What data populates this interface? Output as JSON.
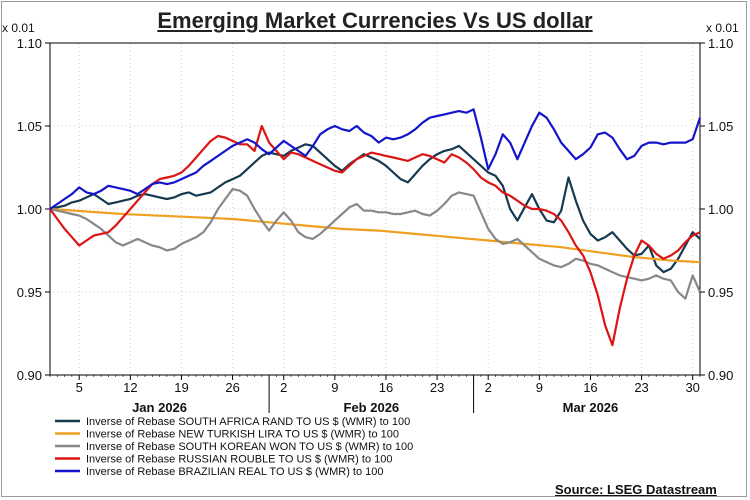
{
  "chart_data": {
    "type": "line",
    "title": "Emerging Market Currencies Vs US dollar",
    "y_scale_label_left": "x 0.01",
    "y_scale_label_right": "x 0.01",
    "ylim": [
      0.9,
      1.1
    ],
    "yticks": [
      "1.10",
      "1.05",
      "1.00",
      "0.95",
      "0.90"
    ],
    "xlim": [
      0,
      89
    ],
    "x_day_ticks": [
      {
        "label": "5",
        "x": 4
      },
      {
        "label": "12",
        "x": 11
      },
      {
        "label": "19",
        "x": 18
      },
      {
        "label": "26",
        "x": 25
      },
      {
        "label": "2",
        "x": 32
      },
      {
        "label": "9",
        "x": 39
      },
      {
        "label": "16",
        "x": 46
      },
      {
        "label": "23",
        "x": 53
      },
      {
        "label": "2",
        "x": 60
      },
      {
        "label": "9",
        "x": 67
      },
      {
        "label": "16",
        "x": 74
      },
      {
        "label": "23",
        "x": 81
      },
      {
        "label": "30",
        "x": 88
      }
    ],
    "x_month_labels": [
      {
        "label": "Jan 2026",
        "x": 15
      },
      {
        "label": "Feb 2026",
        "x": 44
      },
      {
        "label": "Mar 2026",
        "x": 74
      }
    ],
    "x_month_dividers": [
      30,
      58
    ],
    "x_note": "x values are days since 1 Jan 2026 (data begins 1 Jan = 0)",
    "series": [
      {
        "name": "Inverse of Rebase SOUTH AFRICA RAND TO US $ (WMR) to 100",
        "color": "#15394f",
        "x": [
          0,
          1,
          2,
          3,
          4,
          5,
          6,
          7,
          8,
          9,
          10,
          11,
          12,
          13,
          14,
          15,
          16,
          17,
          18,
          19,
          20,
          21,
          22,
          23,
          24,
          25,
          26,
          27,
          28,
          29,
          30,
          31,
          32,
          33,
          34,
          35,
          36,
          37,
          38,
          39,
          40,
          41,
          42,
          43,
          44,
          45,
          46,
          47,
          48,
          49,
          50,
          51,
          52,
          53,
          54,
          55,
          56,
          57,
          58,
          59,
          60,
          61,
          62,
          63,
          64,
          65,
          66,
          67,
          68,
          69,
          70,
          71,
          72,
          73,
          74,
          75,
          76,
          77,
          78,
          79,
          80,
          81,
          82,
          83,
          84,
          85,
          86,
          87,
          88,
          89
        ],
        "values": [
          1.0,
          1.001,
          1.002,
          1.004,
          1.005,
          1.007,
          1.009,
          1.006,
          1.003,
          1.004,
          1.005,
          1.006,
          1.008,
          1.009,
          1.008,
          1.007,
          1.006,
          1.007,
          1.009,
          1.01,
          1.008,
          1.009,
          1.01,
          1.013,
          1.016,
          1.018,
          1.02,
          1.024,
          1.028,
          1.032,
          1.034,
          1.033,
          1.032,
          1.035,
          1.037,
          1.039,
          1.038,
          1.034,
          1.03,
          1.026,
          1.023,
          1.027,
          1.03,
          1.033,
          1.031,
          1.029,
          1.026,
          1.022,
          1.018,
          1.016,
          1.021,
          1.026,
          1.03,
          1.033,
          1.035,
          1.036,
          1.038,
          1.034,
          1.03,
          1.026,
          1.022,
          1.02,
          1.014,
          1.0,
          0.993,
          1.001,
          1.009,
          1.0,
          0.993,
          0.992,
          0.999,
          1.019,
          1.005,
          0.993,
          0.985,
          0.981,
          0.983,
          0.986,
          0.981,
          0.976,
          0.972,
          0.973,
          0.978,
          0.966,
          0.962,
          0.964,
          0.97,
          0.978,
          0.986,
          0.982
        ]
      },
      {
        "name": "Inverse of Rebase NEW TURKISH LIRA TO US $ (WMR) to 100",
        "color": "#f0a020",
        "x": [
          0,
          10,
          20,
          25,
          30,
          35,
          40,
          45,
          50,
          55,
          60,
          65,
          70,
          75,
          80,
          85,
          89
        ],
        "values": [
          1.0,
          0.997,
          0.995,
          0.994,
          0.992,
          0.99,
          0.988,
          0.987,
          0.985,
          0.983,
          0.981,
          0.979,
          0.977,
          0.974,
          0.971,
          0.969,
          0.968
        ]
      },
      {
        "name": "Inverse of Rebase SOUTH KOREAN WON TO US $ (WMR) to 100",
        "color": "#888888",
        "x": [
          0,
          1,
          2,
          3,
          4,
          5,
          6,
          7,
          8,
          9,
          10,
          11,
          12,
          13,
          14,
          15,
          16,
          17,
          18,
          19,
          20,
          21,
          22,
          23,
          24,
          25,
          26,
          27,
          28,
          29,
          30,
          31,
          32,
          33,
          34,
          35,
          36,
          37,
          38,
          39,
          40,
          41,
          42,
          43,
          44,
          45,
          46,
          47,
          48,
          49,
          50,
          51,
          52,
          53,
          54,
          55,
          56,
          57,
          58,
          59,
          60,
          61,
          62,
          63,
          64,
          65,
          66,
          67,
          68,
          69,
          70,
          71,
          72,
          73,
          74,
          75,
          76,
          77,
          78,
          79,
          80,
          81,
          82,
          83,
          84,
          85,
          86,
          87,
          88,
          89
        ],
        "values": [
          1.0,
          0.999,
          0.998,
          0.997,
          0.996,
          0.994,
          0.991,
          0.988,
          0.984,
          0.98,
          0.978,
          0.98,
          0.982,
          0.98,
          0.978,
          0.977,
          0.975,
          0.976,
          0.979,
          0.981,
          0.983,
          0.986,
          0.992,
          1.0,
          1.006,
          1.012,
          1.011,
          1.008,
          1.0,
          0.993,
          0.987,
          0.993,
          0.998,
          0.993,
          0.986,
          0.983,
          0.982,
          0.985,
          0.989,
          0.993,
          0.997,
          1.001,
          1.003,
          0.999,
          0.999,
          0.998,
          0.998,
          0.997,
          0.997,
          0.998,
          0.999,
          0.997,
          0.996,
          0.999,
          1.003,
          1.008,
          1.01,
          1.009,
          1.008,
          0.998,
          0.988,
          0.982,
          0.979,
          0.98,
          0.982,
          0.978,
          0.974,
          0.97,
          0.968,
          0.966,
          0.965,
          0.967,
          0.97,
          0.969,
          0.967,
          0.966,
          0.964,
          0.962,
          0.96,
          0.959,
          0.958,
          0.957,
          0.958,
          0.96,
          0.958,
          0.957,
          0.95,
          0.946,
          0.96,
          0.95
        ]
      },
      {
        "name": "Inverse of Rebase RUSSIAN ROUBLE TO US $ (WMR) to 100",
        "color": "#dc1414",
        "x": [
          0,
          1,
          2,
          3,
          4,
          5,
          6,
          7,
          8,
          9,
          10,
          11,
          12,
          13,
          14,
          15,
          16,
          17,
          18,
          19,
          20,
          21,
          22,
          23,
          24,
          25,
          26,
          27,
          28,
          29,
          30,
          31,
          32,
          33,
          34,
          35,
          36,
          37,
          38,
          39,
          40,
          41,
          42,
          43,
          44,
          45,
          46,
          47,
          48,
          49,
          50,
          51,
          52,
          53,
          54,
          55,
          56,
          57,
          58,
          59,
          60,
          61,
          62,
          63,
          64,
          65,
          66,
          67,
          68,
          69,
          70,
          71,
          72,
          73,
          74,
          75,
          76,
          77,
          78,
          79,
          80,
          81,
          82,
          83,
          84,
          85,
          86,
          87,
          88,
          89
        ],
        "values": [
          1.0,
          0.994,
          0.988,
          0.983,
          0.978,
          0.981,
          0.984,
          0.985,
          0.986,
          0.99,
          0.995,
          1.0,
          1.005,
          1.01,
          1.015,
          1.018,
          1.019,
          1.02,
          1.022,
          1.026,
          1.031,
          1.036,
          1.041,
          1.044,
          1.043,
          1.041,
          1.039,
          1.039,
          1.035,
          1.05,
          1.04,
          1.035,
          1.03,
          1.034,
          1.033,
          1.031,
          1.029,
          1.027,
          1.025,
          1.023,
          1.022,
          1.026,
          1.03,
          1.032,
          1.034,
          1.033,
          1.032,
          1.031,
          1.03,
          1.029,
          1.031,
          1.033,
          1.032,
          1.03,
          1.028,
          1.033,
          1.031,
          1.028,
          1.024,
          1.019,
          1.016,
          1.014,
          1.01,
          1.008,
          1.005,
          1.002,
          1.0,
          1.0,
          0.999,
          0.997,
          0.993,
          0.986,
          0.978,
          0.972,
          0.962,
          0.948,
          0.93,
          0.918,
          0.94,
          0.958,
          0.972,
          0.981,
          0.978,
          0.973,
          0.97,
          0.972,
          0.975,
          0.98,
          0.984,
          0.986
        ]
      },
      {
        "name": "Inverse of Rebase BRAZILIAN REAL TO US $ (WMR) to 100",
        "color": "#1414cc",
        "x": [
          0,
          1,
          2,
          3,
          4,
          5,
          6,
          7,
          8,
          9,
          10,
          11,
          12,
          13,
          14,
          15,
          16,
          17,
          18,
          19,
          20,
          21,
          22,
          23,
          24,
          25,
          26,
          27,
          28,
          29,
          30,
          31,
          32,
          33,
          34,
          35,
          36,
          37,
          38,
          39,
          40,
          41,
          42,
          43,
          44,
          45,
          46,
          47,
          48,
          49,
          50,
          51,
          52,
          53,
          54,
          55,
          56,
          57,
          58,
          59,
          60,
          61,
          62,
          63,
          64,
          65,
          66,
          67,
          68,
          69,
          70,
          71,
          72,
          73,
          74,
          75,
          76,
          77,
          78,
          79,
          80,
          81,
          82,
          83,
          84,
          85,
          86,
          87,
          88,
          89
        ],
        "values": [
          1.0,
          1.003,
          1.006,
          1.009,
          1.013,
          1.01,
          1.009,
          1.011,
          1.014,
          1.013,
          1.012,
          1.011,
          1.009,
          1.012,
          1.015,
          1.016,
          1.015,
          1.016,
          1.018,
          1.02,
          1.022,
          1.026,
          1.029,
          1.032,
          1.035,
          1.038,
          1.04,
          1.042,
          1.04,
          1.036,
          1.033,
          1.037,
          1.041,
          1.038,
          1.035,
          1.032,
          1.038,
          1.045,
          1.048,
          1.05,
          1.048,
          1.047,
          1.05,
          1.046,
          1.044,
          1.04,
          1.043,
          1.042,
          1.043,
          1.045,
          1.048,
          1.052,
          1.055,
          1.056,
          1.057,
          1.058,
          1.059,
          1.058,
          1.06,
          1.043,
          1.024,
          1.033,
          1.045,
          1.04,
          1.03,
          1.04,
          1.05,
          1.058,
          1.055,
          1.048,
          1.04,
          1.035,
          1.03,
          1.033,
          1.037,
          1.045,
          1.046,
          1.043,
          1.036,
          1.03,
          1.032,
          1.038,
          1.04,
          1.04,
          1.039,
          1.04,
          1.04,
          1.04,
          1.042,
          1.055
        ]
      }
    ]
  },
  "source": "Source: LSEG Datastream"
}
